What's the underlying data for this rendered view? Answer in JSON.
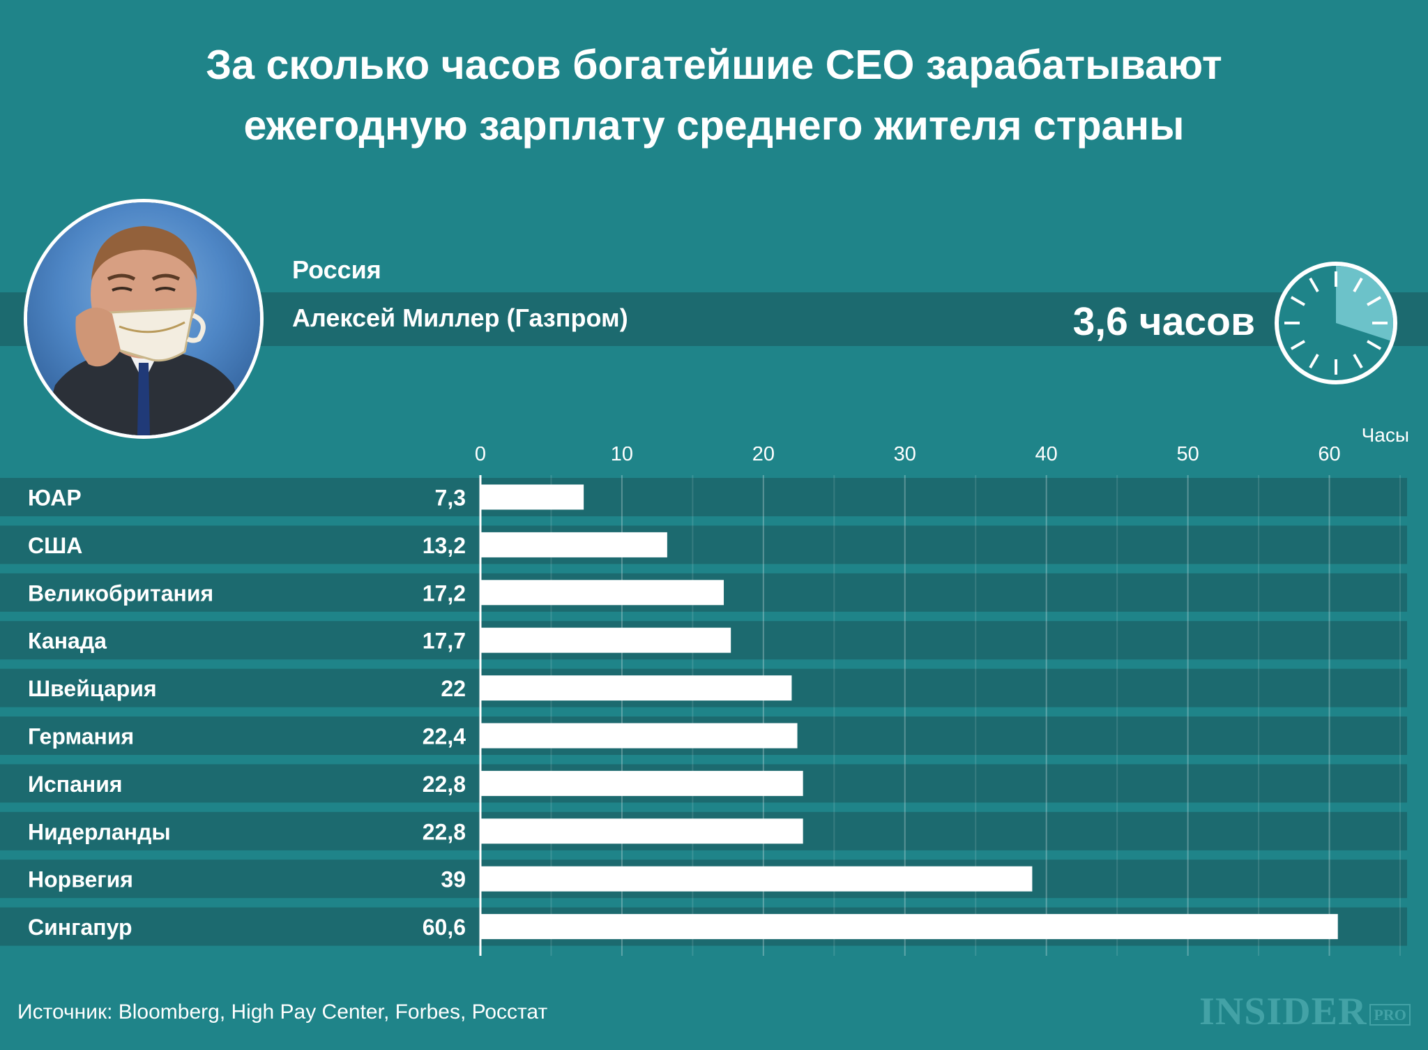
{
  "title_line1": "За сколько часов богатейшие CEO зарабатывают",
  "title_line2": "ежегодную зарплату среднего жителя страны",
  "highlight": {
    "country": "Россия",
    "ceo": "Алексей Миллер (Газпром)",
    "value_text": "3,6 часов",
    "value": 3.6
  },
  "unit_label": "Часы",
  "source": "Источник: Bloomberg, High Pay Center, Forbes, Росстат",
  "logo": {
    "main": "INSIDER",
    "sub": "PRO"
  },
  "colors": {
    "background": "#1f8489",
    "row_band": "#1c6a6f",
    "bar": "#ffffff",
    "clock_face": "#1f8489",
    "clock_fill": "#6cc2c9",
    "logo": "#43a2a6"
  },
  "chart_data": {
    "type": "bar",
    "orientation": "horizontal",
    "categories": [
      "ЮАР",
      "США",
      "Великобритания",
      "Канада",
      "Швейцария",
      "Германия",
      "Испания",
      "Нидерланды",
      "Норвегия",
      "Сингапур"
    ],
    "values": [
      7.3,
      13.2,
      17.2,
      17.7,
      22,
      22.4,
      22.8,
      22.8,
      39,
      60.6
    ],
    "value_labels": [
      "7,3",
      "13,2",
      "17,2",
      "17,7",
      "22",
      "22,4",
      "22,8",
      "22,8",
      "39",
      "60,6"
    ],
    "xticks": [
      0,
      10,
      20,
      30,
      40,
      50,
      60
    ],
    "xlim": [
      0,
      65
    ],
    "xlabel": "Часы",
    "grid": true
  }
}
